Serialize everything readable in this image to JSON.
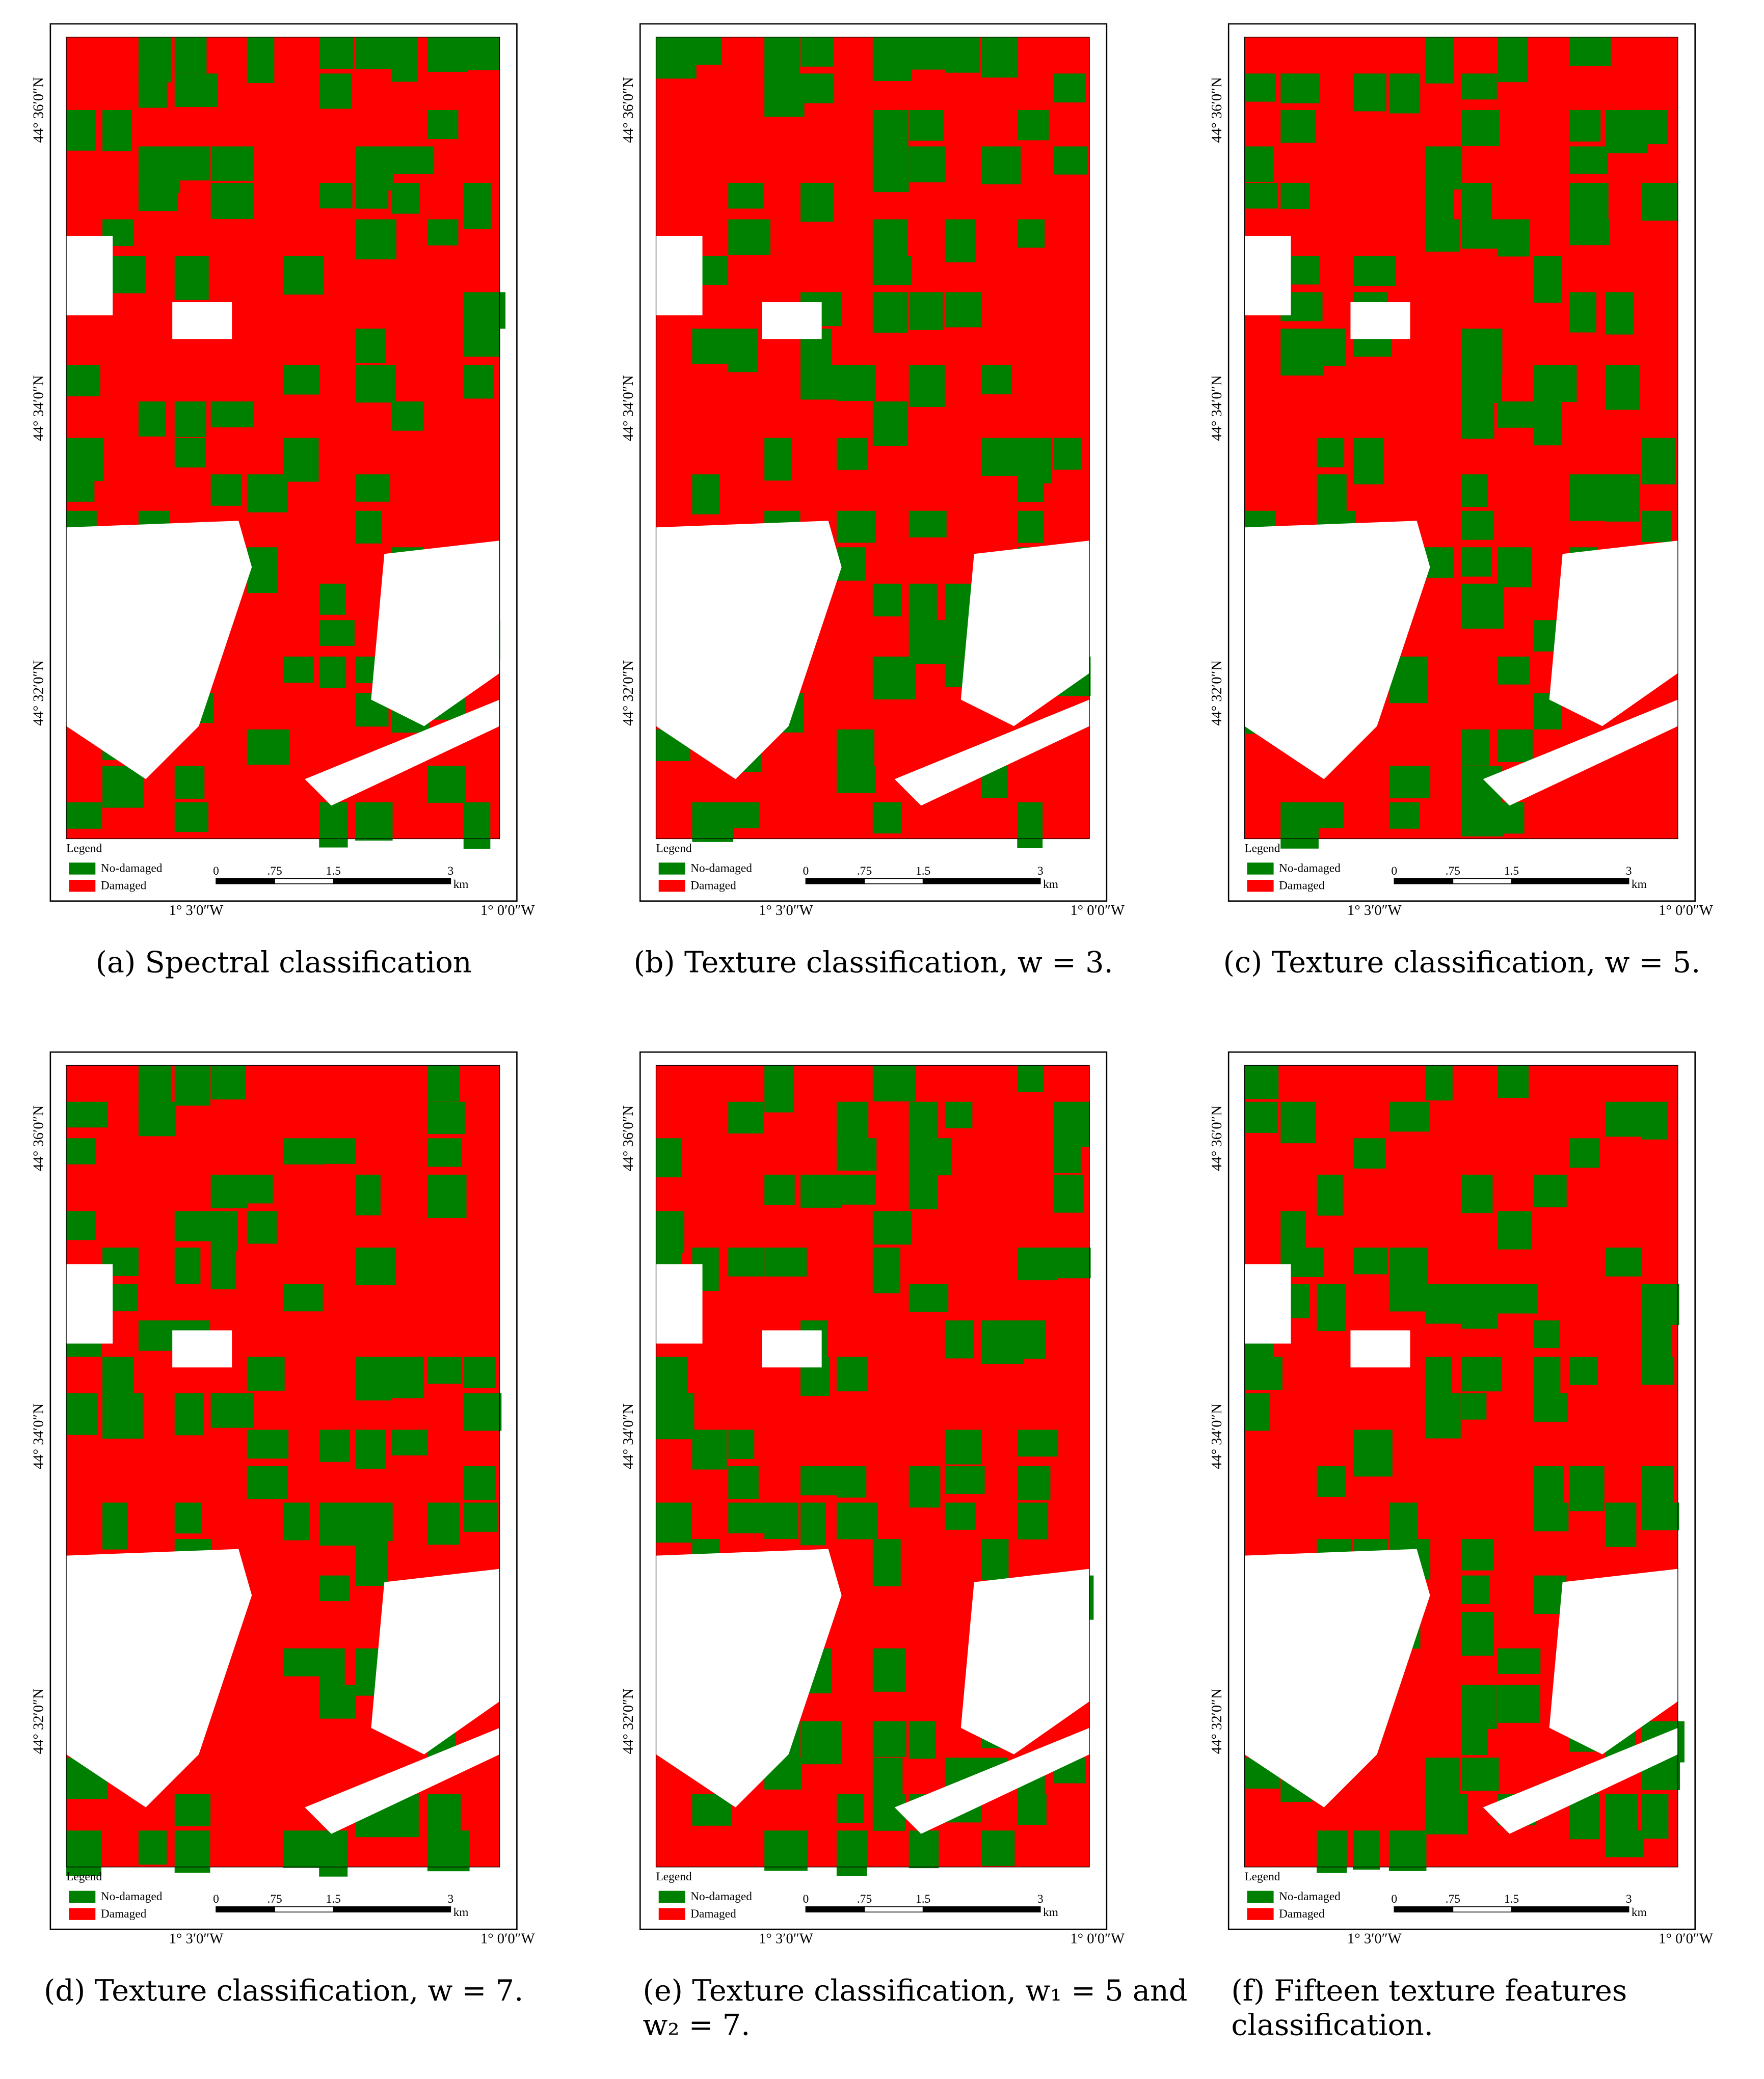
{
  "figures": [
    {
      "caption": [
        "(a)  Spectral classification"
      ],
      "legend": {
        "title": "Legend",
        "items": [
          {
            "label": "No-damaged",
            "color": "#008000"
          },
          {
            "label": "Damaged",
            "color": "#ff0000"
          }
        ]
      },
      "scale": {
        "ticks": [
          0,
          {
            "value": 0.75,
            "label": ".75"
          },
          1.5,
          3
        ],
        "unit": "km"
      },
      "lat_labels": [
        "44° 36′0″N",
        "44° 34′0″N",
        "44° 32′0″N"
      ],
      "lon_labels": [
        "1° 3′0″W",
        "1° 0′0″W"
      ]
    },
    {
      "caption": [
        "(b)  Texture classification, w = 3."
      ],
      "legend": {
        "title": "Legend",
        "items": [
          {
            "label": "No-damaged",
            "color": "#008000"
          },
          {
            "label": "Damaged",
            "color": "#ff0000"
          }
        ]
      },
      "scale": {
        "ticks": [
          0,
          {
            "value": 0.75,
            "label": ".75"
          },
          1.5,
          3
        ],
        "unit": "km"
      },
      "lat_labels": [
        "44° 36′0″N",
        "44° 34′0″N",
        "44° 32′0″N"
      ],
      "lon_labels": [
        "1° 3′0″W",
        "1° 0′0″W"
      ]
    },
    {
      "caption": [
        "(c)  Texture classification, w = 5."
      ],
      "legend": {
        "title": "Legend",
        "items": [
          {
            "label": "No-damaged",
            "color": "#008000"
          },
          {
            "label": "Damaged",
            "color": "#ff0000"
          }
        ]
      },
      "scale": {
        "ticks": [
          0,
          {
            "value": 0.75,
            "label": ".75"
          },
          1.5,
          3
        ],
        "unit": "km"
      },
      "lat_labels": [
        "44° 36′0″N",
        "44° 34′0″N",
        "44° 32′0″N"
      ],
      "lon_labels": [
        "1° 3′0″W",
        "1° 0′0″W"
      ]
    },
    {
      "caption": [
        "(d)  Texture classification, w = 7."
      ],
      "legend": {
        "title": "Legend",
        "items": [
          {
            "label": "No-damaged",
            "color": "#008000"
          },
          {
            "label": "Damaged",
            "color": "#ff0000"
          }
        ]
      },
      "scale": {
        "ticks": [
          0,
          {
            "value": 0.75,
            "label": ".75"
          },
          1.5,
          3
        ],
        "unit": "km"
      },
      "lat_labels": [
        "44° 36′0″N",
        "44° 34′0″N",
        "44° 32′0″N"
      ],
      "lon_labels": [
        "1° 3′0″W",
        "1° 0′0″W"
      ]
    },
    {
      "caption": [
        "(e)  Texture classification, w₁ = 5 and",
        "w₂ = 7."
      ],
      "legend": {
        "title": "Legend",
        "items": [
          {
            "label": "No-damaged",
            "color": "#008000"
          },
          {
            "label": "Damaged",
            "color": "#ff0000"
          }
        ]
      },
      "scale": {
        "ticks": [
          0,
          {
            "value": 0.75,
            "label": ".75"
          },
          1.5,
          3
        ],
        "unit": "km"
      },
      "lat_labels": [
        "44° 36′0″N",
        "44° 34′0″N",
        "44° 32′0″N"
      ],
      "lon_labels": [
        "1° 3′0″W",
        "1° 0′0″W"
      ]
    },
    {
      "caption": [
        "(f)      Fifteen      texture      features",
        "classification."
      ],
      "legend": {
        "title": "Legend",
        "items": [
          {
            "label": "No-damaged",
            "color": "#008000"
          },
          {
            "label": "Damaged",
            "color": "#ff0000"
          }
        ]
      },
      "scale": {
        "ticks": [
          0,
          {
            "value": 0.75,
            "label": ".75"
          },
          1.5,
          3
        ],
        "unit": "km"
      },
      "lat_labels": [
        "44° 36′0″N",
        "44° 34′0″N",
        "44° 32′0″N"
      ],
      "lon_labels": [
        "1° 3′0″W",
        "1° 0′0″W"
      ]
    }
  ]
}
